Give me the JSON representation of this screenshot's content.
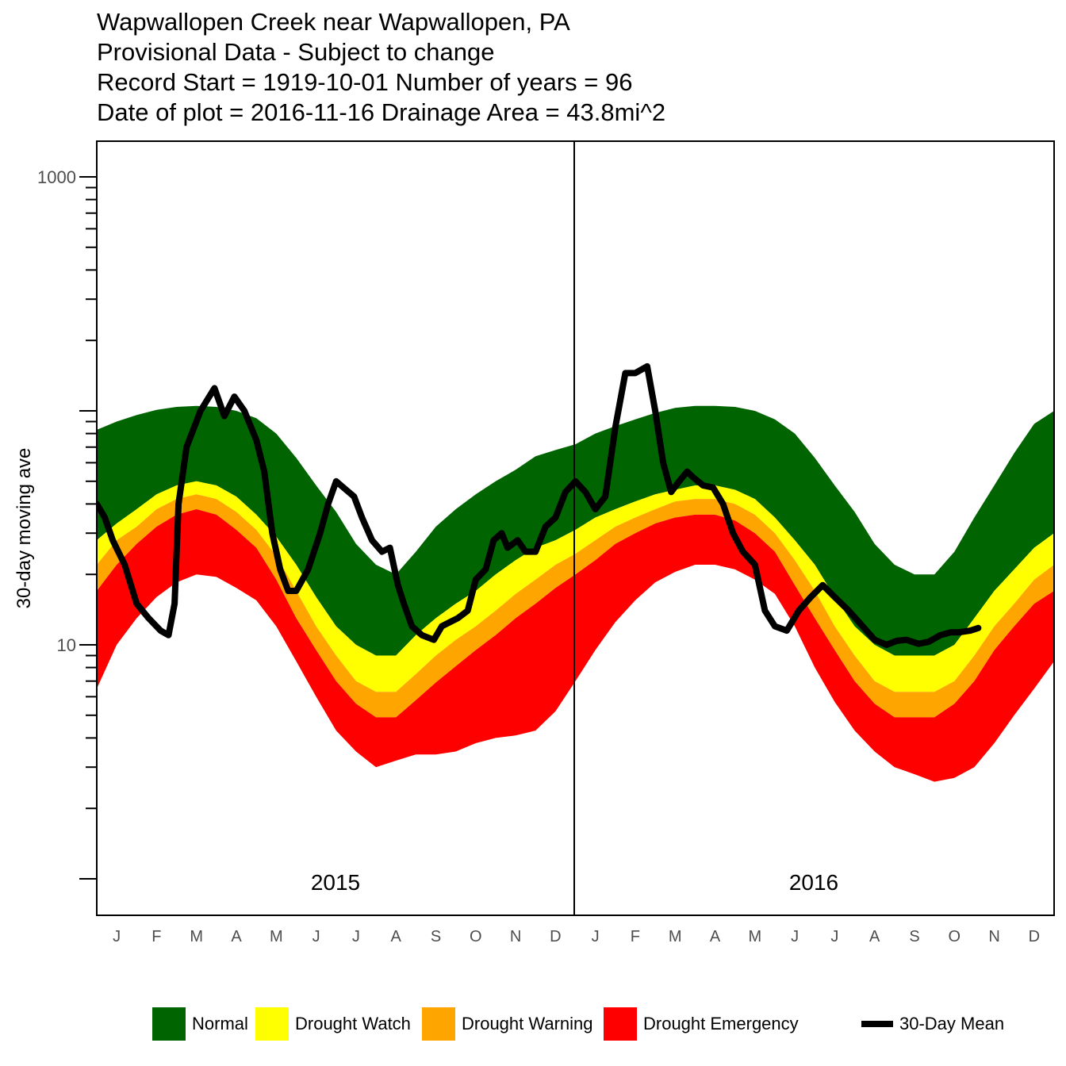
{
  "header": {
    "line1": "Wapwallopen Creek near Wapwallopen, PA",
    "line2": "Provisional Data - Subject to change",
    "line3": "Record Start = 1919-10-01  Number of years = 96",
    "line4": "Date of plot = 2016-11-16  Drainage Area = 43.8mi^2"
  },
  "legend": {
    "normal": "Normal",
    "watch": "Drought Watch",
    "warning": "Drought Warning",
    "emergency": "Drought Emergency",
    "mean": "30-Day Mean"
  },
  "colors": {
    "normal": "#006400",
    "watch": "#FFFF00",
    "warning": "#FFA500",
    "emergency": "#FF0000",
    "mean": "#000000"
  },
  "chart_data": {
    "type": "area",
    "ylabel": "30-day moving ave",
    "y_scale": "log",
    "ylim": [
      1,
      1300
    ],
    "y_tick_labels": [
      "1000",
      "10"
    ],
    "x_month_labels": [
      "J",
      "F",
      "M",
      "A",
      "M",
      "J",
      "J",
      "A",
      "S",
      "O",
      "N",
      "D",
      "J",
      "F",
      "M",
      "A",
      "M",
      "J",
      "J",
      "A",
      "S",
      "O",
      "N",
      "D"
    ],
    "panel_labels": [
      "2015",
      "2016"
    ],
    "grid": false,
    "legend_position": "bottom",
    "band_x_months": [
      0,
      0.5,
      1,
      1.5,
      2,
      2.5,
      3,
      3.5,
      4,
      4.5,
      5,
      5.5,
      6,
      6.5,
      7,
      7.5,
      8,
      8.5,
      9,
      9.5,
      10,
      10.5,
      11,
      11.5,
      12,
      12.5,
      13,
      13.5,
      14,
      14.5,
      15,
      15.5,
      16,
      16.5,
      17,
      17.5,
      18,
      18.5,
      19,
      19.5,
      20,
      20.5,
      21,
      21.5,
      22,
      22.5,
      23,
      23.5,
      24
    ],
    "bands": {
      "normal_top": [
        83,
        90,
        96,
        101,
        104,
        105,
        104,
        100,
        93,
        80,
        63,
        48,
        37,
        27,
        22,
        20,
        25,
        32,
        38,
        44,
        50,
        56,
        64,
        68,
        72,
        80,
        86,
        92,
        98,
        103,
        105,
        105,
        104,
        100,
        92,
        80,
        63,
        48,
        37,
        27,
        22,
        20,
        20,
        25,
        35,
        48,
        66,
        88,
        100
      ],
      "normal_bottom": [
        28,
        33,
        38,
        44,
        48,
        50,
        48,
        43,
        36,
        29,
        22,
        16,
        12,
        10,
        9,
        9,
        11,
        13,
        15,
        17,
        20,
        23,
        26,
        28,
        31,
        35,
        38,
        41,
        44,
        46,
        48,
        48,
        46,
        42,
        35,
        28,
        22,
        16,
        12,
        10,
        9,
        9,
        9,
        10,
        13,
        17,
        21,
        26,
        30
      ],
      "watch_bottom": [
        22,
        28,
        32,
        38,
        42,
        44,
        42,
        37,
        31,
        24,
        17,
        12,
        9,
        7,
        6.3,
        6.3,
        7.5,
        9,
        10.5,
        12,
        14,
        16.5,
        19,
        22,
        24.5,
        28,
        32,
        35,
        38,
        41,
        42,
        42,
        40,
        36,
        30,
        23,
        17,
        12,
        9,
        7,
        6.3,
        6.3,
        6.3,
        7,
        9,
        12,
        15,
        19,
        22
      ],
      "warning_bottom": [
        17,
        22,
        27,
        32,
        36,
        38,
        36,
        31,
        26,
        19,
        13,
        9.5,
        7,
        5.6,
        4.9,
        4.9,
        5.8,
        6.9,
        8.1,
        9.5,
        11,
        13,
        15,
        17.5,
        20,
        23,
        27,
        30,
        33,
        35,
        36,
        36,
        34,
        30,
        25,
        18,
        13,
        9.5,
        7,
        5.6,
        4.9,
        4.9,
        4.9,
        5.6,
        7,
        9.5,
        12,
        15,
        17
      ],
      "emergency_bottom": [
        6.5,
        10,
        13,
        16,
        18.5,
        20,
        19.5,
        17.5,
        15.5,
        12,
        8.5,
        6,
        4.3,
        3.5,
        3.0,
        3.2,
        3.4,
        3.4,
        3.5,
        3.8,
        4.0,
        4.1,
        4.3,
        5.2,
        7.0,
        9.5,
        12.5,
        15.5,
        18.5,
        20.5,
        22,
        22,
        21,
        19,
        16.5,
        12,
        8,
        5.7,
        4.3,
        3.5,
        3.0,
        2.8,
        2.6,
        2.7,
        3.0,
        3.8,
        5.0,
        6.5,
        8.5
      ]
    },
    "mean_series": {
      "name": "30-Day Mean",
      "x_months": [
        0,
        0.2,
        0.4,
        0.7,
        1.0,
        1.3,
        1.6,
        1.8,
        1.95,
        2.05,
        2.25,
        2.6,
        2.95,
        3.2,
        3.45,
        3.7,
        4.0,
        4.2,
        4.4,
        4.6,
        4.8,
        5.0,
        5.3,
        5.6,
        5.8,
        6.0,
        6.25,
        6.45,
        6.65,
        6.9,
        7.15,
        7.35,
        7.55,
        7.7,
        7.9,
        8.15,
        8.45,
        8.65,
        8.85,
        9.05,
        9.3,
        9.5,
        9.75,
        9.95,
        10.15,
        10.3,
        10.55,
        10.75,
        11.0,
        11.25,
        11.5,
        11.75,
        12.0,
        12.25,
        12.5,
        12.75,
        13.0,
        13.25,
        13.5,
        13.8,
        14.0,
        14.2,
        14.4,
        14.6,
        14.8,
        14.95,
        15.2,
        15.45,
        15.7,
        15.95,
        16.2,
        16.5,
        16.75,
        17.0,
        17.3,
        17.6,
        17.9,
        18.2,
        18.5,
        18.85,
        19.2,
        19.5,
        19.8,
        20.05,
        20.3,
        20.6,
        20.85,
        21.15,
        21.4,
        21.6,
        21.9,
        22.1
      ],
      "values": [
        40,
        35,
        28,
        22,
        15,
        13,
        11.5,
        11,
        15,
        40,
        70,
        100,
        125,
        95,
        115,
        100,
        75,
        55,
        30,
        21,
        17,
        17,
        21,
        30,
        40,
        50,
        46,
        43,
        35,
        28,
        25,
        26,
        18,
        15,
        12,
        11,
        10.5,
        12,
        12.5,
        13,
        14,
        19,
        21,
        28,
        30,
        26,
        28,
        25,
        25,
        32,
        35,
        45,
        50,
        45,
        38,
        43,
        85,
        145,
        145,
        155,
        100,
        60,
        45,
        50,
        55,
        52,
        48,
        47,
        40,
        30,
        25,
        22,
        14,
        12,
        11.5,
        14,
        16,
        18,
        16,
        14,
        12,
        10.5,
        10,
        10.4,
        10.5,
        10.1,
        10.3,
        11,
        11.3,
        11.3,
        11.5,
        11.8
      ]
    }
  }
}
